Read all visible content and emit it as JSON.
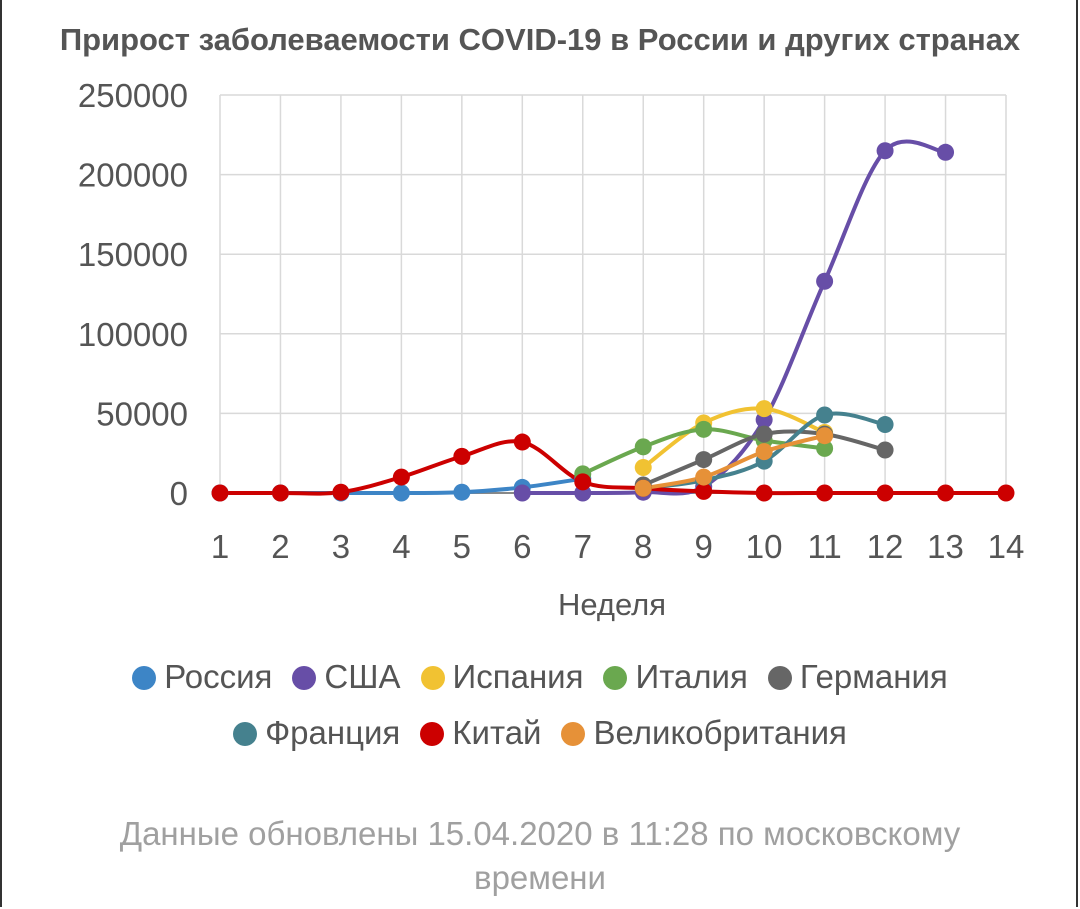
{
  "chart_data": {
    "type": "line",
    "title": "Прирост заболеваемости COVID-19 в России и других странах",
    "xlabel": "Неделя",
    "ylabel": "",
    "x": [
      1,
      2,
      3,
      4,
      5,
      6,
      7,
      8,
      9,
      10,
      11,
      12,
      13,
      14
    ],
    "ylim": [
      0,
      250000
    ],
    "yticks": [
      "0",
      "50000",
      "100000",
      "150000",
      "200000",
      "250000"
    ],
    "xticks": [
      "1",
      "2",
      "3",
      "4",
      "5",
      "6",
      "7",
      "8",
      "9",
      "10",
      "11",
      "12",
      "13",
      "14"
    ],
    "grid": true,
    "legend_position": "bottom",
    "series": [
      {
        "name": "Россия",
        "color": "#3d85c6",
        "values": [
          0,
          0,
          0,
          0,
          500,
          3500,
          9000,
          null,
          null,
          null,
          null,
          null,
          null,
          null
        ]
      },
      {
        "name": "США",
        "color": "#674ea7",
        "values": [
          null,
          null,
          null,
          null,
          null,
          0,
          0,
          500,
          4000,
          46000,
          133000,
          215000,
          214000,
          null
        ]
      },
      {
        "name": "Испания",
        "color": "#f1c232",
        "values": [
          null,
          null,
          null,
          null,
          null,
          null,
          null,
          16000,
          44000,
          53000,
          38000,
          null,
          null,
          null
        ]
      },
      {
        "name": "Италия",
        "color": "#6aa84f",
        "values": [
          null,
          null,
          null,
          null,
          null,
          null,
          12000,
          29000,
          40000,
          33000,
          28000,
          null,
          null,
          null
        ]
      },
      {
        "name": "Германия",
        "color": "#666666",
        "values": [
          null,
          null,
          null,
          null,
          null,
          null,
          null,
          5000,
          21000,
          37000,
          37000,
          27000,
          null,
          null
        ]
      },
      {
        "name": "Франция",
        "color": "#45818e",
        "values": [
          null,
          null,
          null,
          null,
          null,
          null,
          null,
          3000,
          8000,
          20000,
          49000,
          43000,
          null,
          null
        ]
      },
      {
        "name": "Китай",
        "color": "#cc0000",
        "values": [
          0,
          0,
          500,
          10000,
          23000,
          32000,
          7000,
          3000,
          1000,
          0,
          0,
          0,
          0,
          0
        ]
      },
      {
        "name": "Великобритания",
        "color": "#e69138",
        "values": [
          null,
          null,
          null,
          null,
          null,
          null,
          null,
          3000,
          10000,
          26000,
          36000,
          null,
          null,
          null
        ]
      }
    ]
  },
  "footer": {
    "line1": "Данные обновлены 15.04.2020 в 11:28 по московскому",
    "line2": "времени"
  }
}
